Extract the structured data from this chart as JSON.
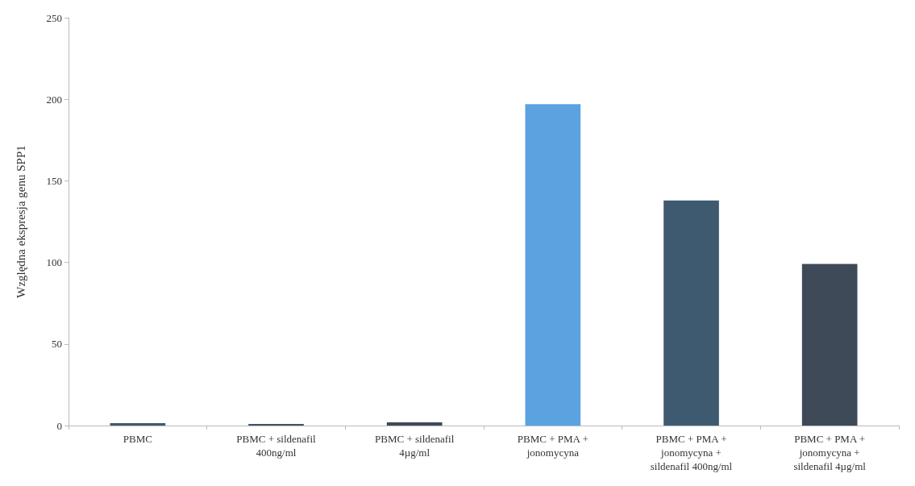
{
  "chart_data": {
    "type": "bar",
    "ylabel": "Względna ekspresja genu SPP1",
    "categories": [
      "PBMC",
      "PBMC + sildenafil\n400ng/ml",
      "PBMC + sildenafil\n4µg/ml",
      "PBMC + PMA +\njonomycyna",
      "PBMC + PMA +\njonomycyna +\nsildenafil 400ng/ml",
      "PBMC + PMA +\njonomycyna +\nsildenafil 4µg/ml"
    ],
    "values": [
      1.5,
      1,
      2,
      197,
      138,
      99
    ],
    "colors": [
      "#3e5a72",
      "#3e5468",
      "#3e4a58",
      "#5aa2e0",
      "#3e5a70",
      "#3e4a58"
    ],
    "ylim": [
      0,
      250
    ],
    "yticks": [
      0,
      50,
      100,
      150,
      200,
      250
    ]
  }
}
